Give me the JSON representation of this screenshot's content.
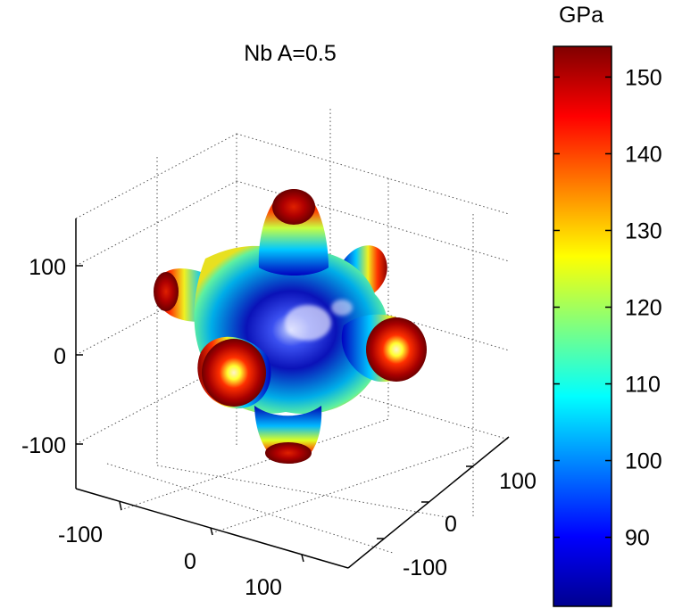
{
  "chart_data": {
    "type": "surface3d",
    "title": "Nb A=0.5",
    "colorbar": {
      "label": "GPa",
      "range": [
        81,
        154
      ],
      "ticks": [
        90,
        100,
        110,
        120,
        130,
        140,
        150
      ],
      "tick_labels": [
        "90",
        "100",
        "110",
        "120",
        "130",
        "140",
        "150"
      ],
      "colormap": "jet"
    },
    "axes": {
      "z": {
        "ticks": [
          100,
          0,
          -100
        ],
        "tick_labels": [
          "100",
          "0",
          "-100"
        ],
        "range": [
          -155,
          155
        ]
      },
      "x": {
        "ticks": [
          -100,
          0,
          100
        ],
        "tick_labels": [
          "-100",
          "0",
          "100"
        ],
        "range": [
          -155,
          155
        ]
      },
      "y": {
        "ticks": [
          100,
          0,
          -100
        ],
        "tick_labels": [
          "100",
          "0",
          "-100"
        ],
        "range": [
          -155,
          155
        ]
      }
    },
    "grid": true,
    "surface": {
      "description_lobes": 6,
      "max_value": 154,
      "min_value": 81
    }
  }
}
